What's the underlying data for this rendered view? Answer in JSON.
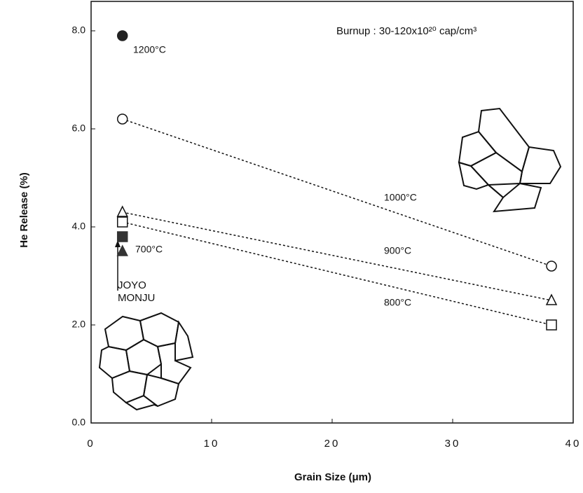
{
  "chart_data": {
    "type": "scatter",
    "xlabel": "Grain Size   (μm)",
    "ylabel": "He Release (%)",
    "xlim": [
      0,
      40
    ],
    "ylim": [
      0,
      8.6
    ],
    "xticks": [
      0,
      10,
      20,
      30,
      40
    ],
    "yticks": [
      {
        "value": 0,
        "label": "0.0"
      },
      {
        "value": 2,
        "label": "2.0"
      },
      {
        "value": 4,
        "label": "4.0"
      },
      {
        "value": 6,
        "label": "6.0"
      },
      {
        "value": 8,
        "label": "8.0"
      }
    ],
    "series": [
      {
        "name": "1200°C",
        "marker": "circle",
        "filled": true,
        "dashed": false,
        "color": "#222222",
        "x": [
          2.6
        ],
        "values": [
          7.9
        ]
      },
      {
        "name": "1000°C",
        "marker": "circle",
        "filled": false,
        "dashed": true,
        "color": "#111111",
        "x": [
          2.6,
          38.2
        ],
        "values": [
          6.2,
          3.2
        ]
      },
      {
        "name": "900°C",
        "marker": "triangle",
        "filled": false,
        "dashed": true,
        "color": "#111111",
        "x": [
          2.6,
          38.2
        ],
        "values": [
          4.3,
          2.5
        ]
      },
      {
        "name": "800°C",
        "marker": "square",
        "filled": false,
        "dashed": true,
        "color": "#111111",
        "x": [
          2.6,
          38.2
        ],
        "values": [
          4.1,
          2.0
        ]
      },
      {
        "name": "700°C",
        "marker": [
          "square",
          "triangle"
        ],
        "filled": true,
        "dashed": false,
        "color": "#333333",
        "x": [
          2.6,
          2.6
        ],
        "values": [
          3.8,
          3.5
        ]
      }
    ],
    "annotations": [
      "Burnup : 30-120x10²⁰  cap/cm³",
      "JOYO",
      "MONJU"
    ]
  }
}
